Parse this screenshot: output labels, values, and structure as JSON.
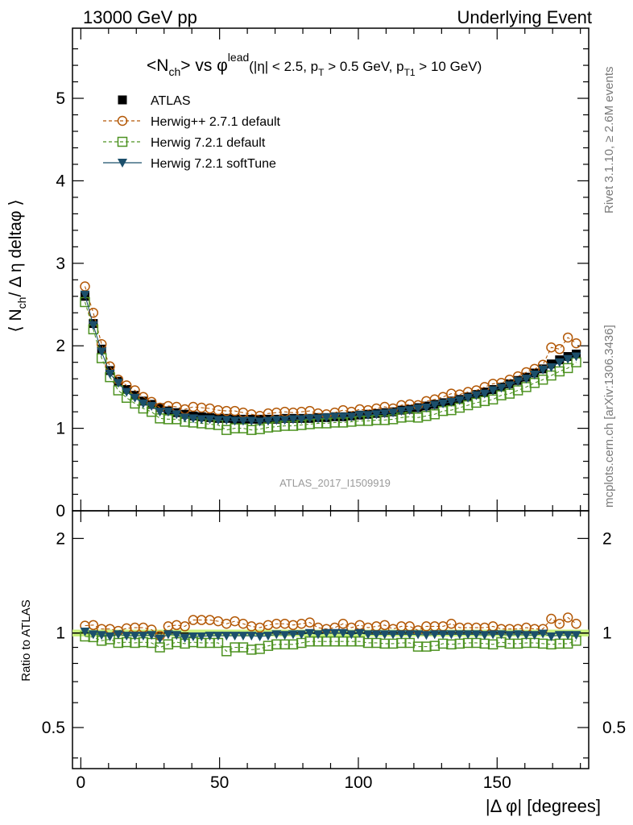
{
  "header": {
    "left": "13000 GeV pp",
    "right": "Underlying Event"
  },
  "title": {
    "main": "<N",
    "main_sub": "ch",
    "main_mid": "> vs φ",
    "main_sup": "lead",
    "cuts_a": "(|η| < 2.5, p",
    "cuts_sub1": "T",
    "cuts_b": " > 0.5 GeV, p",
    "cuts_sub2": "T1",
    "cuts_c": " > 10 GeV)"
  },
  "side_text": {
    "rivet": "Rivet 3.1.10, ≥ 2.6M events",
    "mcplots": "mcplots.cern.ch [arXiv:1306.3436]"
  },
  "watermark": "ATLAS_2017_I1509919",
  "axes": {
    "ylabel_top_a": "⟨ N",
    "ylabel_top_sub": "ch",
    "ylabel_top_b": "/ Δ η deltaφ ⟩",
    "ylabel_bottom": "Ratio to ATLAS",
    "xlabel": "|Δ φ| [degrees]",
    "top_yticks": [
      "0",
      "1",
      "2",
      "3",
      "4",
      "5"
    ],
    "bottom_yticks_left": [
      "0.5",
      "1",
      "2"
    ],
    "bottom_yticks_right": [
      "0.5",
      "1",
      "2"
    ],
    "xticks": [
      "0",
      "50",
      "100",
      "150"
    ]
  },
  "legend": [
    {
      "label": "ATLAS",
      "color": "#000000",
      "marker": "square-filled",
      "line": "none"
    },
    {
      "label": "Herwig++ 2.7.1 default",
      "color": "#b35806",
      "marker": "circle-open",
      "line": "dashed"
    },
    {
      "label": "Herwig 7.2.1 default",
      "color": "#4d9221",
      "marker": "square-open",
      "line": "dashed"
    },
    {
      "label": "Herwig 7.2.1 softTune",
      "color": "#1b4f6b",
      "marker": "triangle-down",
      "line": "solid"
    }
  ],
  "chart_data": [
    {
      "type": "scatter",
      "panel": "main",
      "xlabel": "|Δ φ| [degrees]",
      "ylabel": "⟨ Nch / Δ η deltaφ ⟩",
      "xlim": [
        -3,
        183
      ],
      "ylim": [
        0,
        5.85
      ],
      "x": [
        1.5,
        4.5,
        7.5,
        10.5,
        13.5,
        16.5,
        19.5,
        22.5,
        25.5,
        28.5,
        31.5,
        34.5,
        37.5,
        40.5,
        43.5,
        46.5,
        49.5,
        52.5,
        55.5,
        58.5,
        61.5,
        64.5,
        67.5,
        70.5,
        73.5,
        76.5,
        79.5,
        82.5,
        85.5,
        88.5,
        91.5,
        94.5,
        97.5,
        100.5,
        103.5,
        106.5,
        109.5,
        112.5,
        115.5,
        118.5,
        121.5,
        124.5,
        127.5,
        130.5,
        133.5,
        136.5,
        139.5,
        142.5,
        145.5,
        148.5,
        151.5,
        154.5,
        157.5,
        160.5,
        163.5,
        166.5,
        169.5,
        172.5,
        175.5,
        178.5
      ],
      "series": [
        {
          "name": "ATLAS",
          "color": "#000000",
          "values": [
            2.6,
            2.27,
            1.96,
            1.7,
            1.57,
            1.47,
            1.4,
            1.33,
            1.29,
            1.25,
            1.21,
            1.19,
            1.17,
            1.15,
            1.14,
            1.13,
            1.12,
            1.12,
            1.11,
            1.11,
            1.11,
            1.11,
            1.11,
            1.11,
            1.12,
            1.12,
            1.12,
            1.12,
            1.13,
            1.13,
            1.14,
            1.14,
            1.15,
            1.16,
            1.17,
            1.18,
            1.19,
            1.2,
            1.22,
            1.23,
            1.25,
            1.27,
            1.29,
            1.31,
            1.33,
            1.35,
            1.38,
            1.41,
            1.44,
            1.47,
            1.5,
            1.54,
            1.58,
            1.62,
            1.67,
            1.72,
            1.78,
            1.83,
            1.87,
            1.9
          ]
        },
        {
          "name": "Herwig++ 2.7.1 default",
          "color": "#b35806",
          "values": [
            2.72,
            2.4,
            2.02,
            1.75,
            1.59,
            1.52,
            1.46,
            1.38,
            1.32,
            1.25,
            1.27,
            1.26,
            1.23,
            1.26,
            1.25,
            1.24,
            1.22,
            1.21,
            1.21,
            1.19,
            1.17,
            1.15,
            1.18,
            1.19,
            1.2,
            1.19,
            1.2,
            1.21,
            1.18,
            1.17,
            1.19,
            1.22,
            1.2,
            1.23,
            1.22,
            1.24,
            1.26,
            1.24,
            1.28,
            1.29,
            1.28,
            1.33,
            1.35,
            1.38,
            1.42,
            1.41,
            1.44,
            1.46,
            1.5,
            1.54,
            1.55,
            1.59,
            1.63,
            1.68,
            1.72,
            1.77,
            1.98,
            1.96,
            2.1,
            2.03
          ]
        },
        {
          "name": "Herwig 7.2.1 default",
          "color": "#4d9221",
          "values": [
            2.53,
            2.2,
            1.85,
            1.62,
            1.46,
            1.37,
            1.3,
            1.24,
            1.2,
            1.12,
            1.11,
            1.11,
            1.08,
            1.07,
            1.06,
            1.05,
            1.04,
            0.98,
            1.0,
            1.0,
            0.98,
            0.99,
            1.01,
            1.02,
            1.03,
            1.03,
            1.04,
            1.05,
            1.06,
            1.06,
            1.07,
            1.07,
            1.08,
            1.09,
            1.09,
            1.1,
            1.1,
            1.11,
            1.13,
            1.14,
            1.13,
            1.15,
            1.17,
            1.21,
            1.22,
            1.25,
            1.28,
            1.31,
            1.33,
            1.35,
            1.4,
            1.42,
            1.46,
            1.5,
            1.55,
            1.59,
            1.64,
            1.69,
            1.73,
            1.8
          ]
        },
        {
          "name": "Herwig 7.2.1 softTune",
          "color": "#1b4f6b",
          "values": [
            2.62,
            2.25,
            1.93,
            1.66,
            1.55,
            1.44,
            1.37,
            1.3,
            1.27,
            1.2,
            1.2,
            1.17,
            1.13,
            1.12,
            1.11,
            1.11,
            1.1,
            1.1,
            1.09,
            1.09,
            1.09,
            1.08,
            1.09,
            1.1,
            1.1,
            1.11,
            1.11,
            1.12,
            1.12,
            1.13,
            1.14,
            1.14,
            1.14,
            1.16,
            1.16,
            1.17,
            1.18,
            1.19,
            1.21,
            1.22,
            1.24,
            1.25,
            1.28,
            1.3,
            1.32,
            1.34,
            1.37,
            1.4,
            1.42,
            1.46,
            1.49,
            1.52,
            1.57,
            1.6,
            1.65,
            1.71,
            1.74,
            1.8,
            1.84,
            1.87
          ]
        }
      ]
    },
    {
      "type": "scatter",
      "panel": "ratio",
      "ylabel": "Ratio to ATLAS",
      "yscale": "log",
      "xlim": [
        -3,
        183
      ],
      "ylim": [
        0.37,
        2.45
      ],
      "band": {
        "center": 1.0,
        "half_width": 0.025,
        "color": "#c8f07c"
      },
      "x": [
        1.5,
        4.5,
        7.5,
        10.5,
        13.5,
        16.5,
        19.5,
        22.5,
        25.5,
        28.5,
        31.5,
        34.5,
        37.5,
        40.5,
        43.5,
        46.5,
        49.5,
        52.5,
        55.5,
        58.5,
        61.5,
        64.5,
        67.5,
        70.5,
        73.5,
        76.5,
        79.5,
        82.5,
        85.5,
        88.5,
        91.5,
        94.5,
        97.5,
        100.5,
        103.5,
        106.5,
        109.5,
        112.5,
        115.5,
        118.5,
        121.5,
        124.5,
        127.5,
        130.5,
        133.5,
        136.5,
        139.5,
        142.5,
        145.5,
        148.5,
        151.5,
        154.5,
        157.5,
        160.5,
        163.5,
        166.5,
        169.5,
        172.5,
        175.5,
        178.5
      ],
      "series": [
        {
          "name": "Herwig++ 2.7.1 default",
          "color": "#b35806",
          "values": [
            1.055,
            1.06,
            1.03,
            1.03,
            1.015,
            1.035,
            1.04,
            1.04,
            1.025,
            0.98,
            1.05,
            1.06,
            1.05,
            1.1,
            1.1,
            1.1,
            1.09,
            1.07,
            1.09,
            1.07,
            1.05,
            1.04,
            1.06,
            1.07,
            1.07,
            1.06,
            1.07,
            1.08,
            1.04,
            1.03,
            1.04,
            1.07,
            1.04,
            1.06,
            1.04,
            1.05,
            1.06,
            1.03,
            1.05,
            1.05,
            1.02,
            1.05,
            1.05,
            1.05,
            1.07,
            1.04,
            1.04,
            1.04,
            1.04,
            1.05,
            1.03,
            1.03,
            1.03,
            1.04,
            1.03,
            1.03,
            1.11,
            1.07,
            1.12,
            1.07
          ]
        },
        {
          "name": "Herwig 7.2.1 default",
          "color": "#4d9221",
          "values": [
            0.975,
            0.97,
            0.945,
            0.955,
            0.93,
            0.935,
            0.93,
            0.935,
            0.93,
            0.9,
            0.92,
            0.935,
            0.925,
            0.935,
            0.93,
            0.93,
            0.93,
            0.875,
            0.9,
            0.9,
            0.885,
            0.89,
            0.91,
            0.92,
            0.92,
            0.92,
            0.93,
            0.94,
            0.94,
            0.94,
            0.94,
            0.94,
            0.94,
            0.94,
            0.93,
            0.93,
            0.925,
            0.925,
            0.93,
            0.93,
            0.905,
            0.905,
            0.91,
            0.925,
            0.92,
            0.925,
            0.93,
            0.93,
            0.925,
            0.92,
            0.935,
            0.925,
            0.925,
            0.93,
            0.93,
            0.925,
            0.92,
            0.925,
            0.925,
            0.945
          ]
        },
        {
          "name": "Herwig 7.2.1 softTune",
          "color": "#1b4f6b",
          "values": [
            1.01,
            0.99,
            0.985,
            0.975,
            0.99,
            0.98,
            0.98,
            0.98,
            0.985,
            0.96,
            0.99,
            0.985,
            0.965,
            0.975,
            0.975,
            0.98,
            0.98,
            0.98,
            0.98,
            0.98,
            0.98,
            0.975,
            0.98,
            0.99,
            0.985,
            0.99,
            0.99,
            1.0,
            0.99,
            1.0,
            1.0,
            1.0,
            0.99,
            1.0,
            0.99,
            0.99,
            0.99,
            0.99,
            0.99,
            0.99,
            0.99,
            0.985,
            0.99,
            0.99,
            0.99,
            0.99,
            0.99,
            0.99,
            0.985,
            0.99,
            0.99,
            0.985,
            0.99,
            0.985,
            0.985,
            0.995,
            0.975,
            0.985,
            0.985,
            0.985
          ]
        }
      ]
    }
  ]
}
